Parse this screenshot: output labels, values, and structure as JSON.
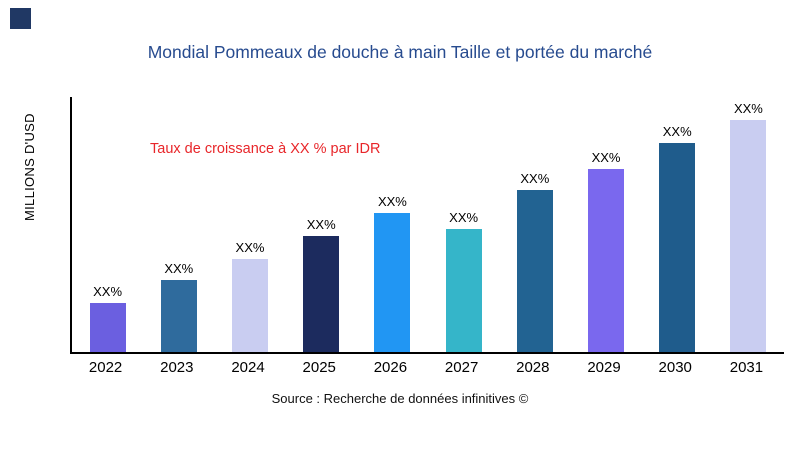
{
  "colors": {
    "title": "#274b8f",
    "annotation": "#e8262a",
    "brand_square": "#203864",
    "axis": "#000000"
  },
  "chart_data": {
    "type": "bar",
    "title": "Mondial Pommeaux de douche à main Taille et portée du marché",
    "ylabel": "MILLIONS D'USD",
    "xlabel": "",
    "annotation": "Taux de croissance à XX % par IDR",
    "source": "Source : Recherche de données infinitives ©",
    "categories": [
      "2022",
      "2023",
      "2024",
      "2025",
      "2026",
      "2027",
      "2028",
      "2029",
      "2030",
      "2031"
    ],
    "values": [
      21,
      31,
      40,
      50,
      60,
      53,
      70,
      79,
      90,
      100
    ],
    "bar_labels": [
      "XX%",
      "XX%",
      "XX%",
      "XX%",
      "XX%",
      "XX%",
      "XX%",
      "XX%",
      "XX%",
      "XX%"
    ],
    "bar_colors": [
      "#6b5fe0",
      "#2f6b9d",
      "#c9cdf1",
      "#1c2b5e",
      "#2196f3",
      "#35b5c9",
      "#226392",
      "#7a68ee",
      "#1f5c8c",
      "#c9cdf1"
    ],
    "ylim": [
      0,
      100
    ],
    "grid": false,
    "legend": false
  }
}
